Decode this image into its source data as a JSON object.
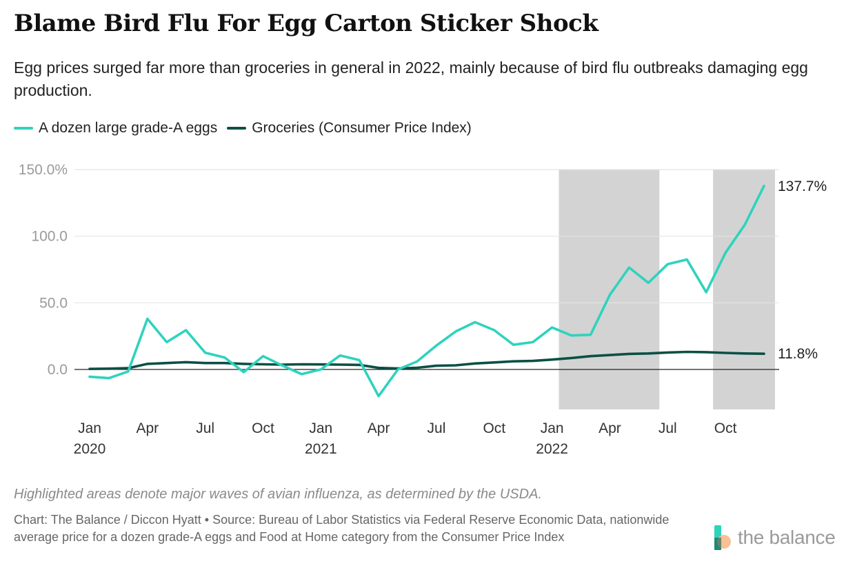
{
  "header": {
    "title": "Blame Bird Flu For Egg Carton Sticker Shock",
    "subtitle": "Egg prices surged far more than groceries in general in 2022, mainly because of bird flu outbreaks damaging egg production."
  },
  "footer": {
    "note": "Highlighted areas denote major waves of avian influenza, as determined by the USDA.",
    "source": "Chart: The Balance / Diccon Hyatt • Source: Bureau of Labor Statistics via Federal Reserve Economic Data, nationwide average price for a dozen grade-A eggs and Food at Home category from the Consumer Price Index",
    "brand": "the balance"
  },
  "colors": {
    "eggs": "#2ed3bd",
    "groceries": "#0b4f45",
    "shade": "#d3d3d3",
    "grid": "#e4e4e4",
    "zero": "#222222"
  },
  "chart_data": {
    "type": "line",
    "title": "Blame Bird Flu For Egg Carton Sticker Shock",
    "ylim": [
      -30,
      150
    ],
    "yticks": [
      {
        "value": 150,
        "label": "150.0%"
      },
      {
        "value": 100,
        "label": "100.0"
      },
      {
        "value": 50,
        "label": "50.0"
      },
      {
        "value": 0,
        "label": "0.0"
      }
    ],
    "x_months": [
      "2020-01",
      "2020-02",
      "2020-03",
      "2020-04",
      "2020-05",
      "2020-06",
      "2020-07",
      "2020-08",
      "2020-09",
      "2020-10",
      "2020-11",
      "2020-12",
      "2021-01",
      "2021-02",
      "2021-03",
      "2021-04",
      "2021-05",
      "2021-06",
      "2021-07",
      "2021-08",
      "2021-09",
      "2021-10",
      "2021-11",
      "2021-12",
      "2022-01",
      "2022-02",
      "2022-03",
      "2022-04",
      "2022-05",
      "2022-06",
      "2022-07",
      "2022-08",
      "2022-09",
      "2022-10",
      "2022-11",
      "2022-12"
    ],
    "xticks": [
      {
        "index": 0,
        "label": "Jan",
        "year": "2020"
      },
      {
        "index": 3,
        "label": "Apr",
        "year": ""
      },
      {
        "index": 6,
        "label": "Jul",
        "year": ""
      },
      {
        "index": 9,
        "label": "Oct",
        "year": ""
      },
      {
        "index": 12,
        "label": "Jan",
        "year": "2021"
      },
      {
        "index": 15,
        "label": "Apr",
        "year": ""
      },
      {
        "index": 18,
        "label": "Jul",
        "year": ""
      },
      {
        "index": 21,
        "label": "Oct",
        "year": ""
      },
      {
        "index": 24,
        "label": "Jan",
        "year": "2022"
      },
      {
        "index": 27,
        "label": "Apr",
        "year": ""
      },
      {
        "index": 30,
        "label": "Jul",
        "year": ""
      },
      {
        "index": 33,
        "label": "Oct",
        "year": ""
      }
    ],
    "shaded_periods": [
      {
        "start": 25.0,
        "end": 29.0
      },
      {
        "start": 33.0,
        "end": 35.0
      }
    ],
    "series": [
      {
        "name": "A dozen large grade-A eggs",
        "color_key": "eggs",
        "end_label": "137.7%",
        "values": [
          -5.5,
          -6.5,
          -1.5,
          38,
          20.5,
          29.5,
          12.5,
          9,
          -2,
          10,
          3,
          -3.5,
          0,
          10.5,
          7,
          -20,
          0,
          6,
          18,
          28.5,
          35.5,
          29.5,
          18.5,
          20.5,
          31.5,
          25.5,
          26,
          56,
          76.5,
          65,
          79,
          82.5,
          58,
          87.5,
          108.5,
          137.7
        ]
      },
      {
        "name": "Groceries (Consumer Price Index)",
        "color_key": "groceries",
        "end_label": "11.8%",
        "values": [
          0.4,
          0.6,
          1,
          4.2,
          4.8,
          5.5,
          4.8,
          4.8,
          4.2,
          3.9,
          3.6,
          3.9,
          3.8,
          3.6,
          3.4,
          1.2,
          0.8,
          1.3,
          2.8,
          3.1,
          4.5,
          5.3,
          6.1,
          6.4,
          7.4,
          8.6,
          10,
          10.8,
          11.7,
          12,
          12.7,
          13.2,
          13,
          12.4,
          12,
          11.8
        ]
      }
    ]
  }
}
